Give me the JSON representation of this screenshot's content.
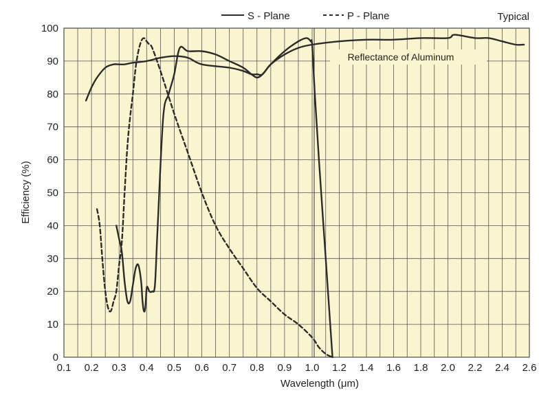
{
  "chart_data": {
    "type": "line",
    "title": "",
    "note": "Typical",
    "xlabel": "Wavelength (μm)",
    "ylabel": "Efficiency (%)",
    "ylim": [
      0,
      100
    ],
    "y_ticks": [
      0,
      10,
      20,
      30,
      40,
      50,
      60,
      70,
      80,
      90,
      100
    ],
    "x_ticks_left": [
      "0.1",
      "0.2",
      "0.3",
      "0.4",
      "0.5",
      "0.6",
      "0.7",
      "0.8",
      "0.9",
      "1.0"
    ],
    "x_ticks_right": [
      "1.2",
      "1.4",
      "1.6",
      "1.8",
      "2.0",
      "2.2",
      "2.4",
      "2.6"
    ],
    "x_scale_note": "axis is compressed to the right of 1.0 μm (each division = 0.2 μm)",
    "grid": true,
    "legend_position": "top",
    "annotation": "Reflectance of Aluminum",
    "colors": {
      "plot_background": "#fbf5cf",
      "grid": "#555555",
      "line": "#2b2b2b"
    },
    "series": [
      {
        "name": "S - Plane",
        "style": "solid",
        "x": [
          0.29,
          0.3,
          0.31,
          0.32,
          0.33,
          0.34,
          0.35,
          0.36,
          0.37,
          0.38,
          0.385,
          0.39,
          0.395,
          0.4,
          0.405,
          0.41,
          0.42,
          0.43,
          0.44,
          0.46,
          0.48,
          0.5,
          0.52,
          0.55,
          0.6,
          0.65,
          0.7,
          0.75,
          0.78,
          0.8,
          0.82,
          0.85,
          0.9,
          0.95,
          0.98,
          0.995,
          1.0,
          1.02,
          1.05,
          1.1,
          1.15
        ],
        "y": [
          40,
          36,
          32,
          23,
          17,
          17,
          22,
          27,
          28,
          23,
          17,
          14,
          15,
          21,
          21,
          20,
          20,
          22,
          40,
          73,
          80,
          86,
          94,
          93,
          93,
          92,
          90,
          88,
          86,
          85,
          86,
          89,
          93,
          96,
          97,
          96,
          95,
          80,
          60,
          30,
          0
        ]
      },
      {
        "name": "P - Plane",
        "style": "dashed",
        "x": [
          0.22,
          0.23,
          0.24,
          0.25,
          0.26,
          0.27,
          0.28,
          0.29,
          0.3,
          0.31,
          0.32,
          0.33,
          0.34,
          0.35,
          0.36,
          0.37,
          0.38,
          0.39,
          0.4,
          0.41,
          0.42,
          0.45,
          0.5,
          0.55,
          0.6,
          0.65,
          0.7,
          0.75,
          0.8,
          0.85,
          0.9,
          0.95,
          1.0,
          1.05,
          1.1,
          1.15
        ],
        "y": [
          45,
          40,
          29,
          20,
          15,
          14,
          17,
          20,
          28,
          35,
          50,
          64,
          73,
          80,
          88,
          93,
          96,
          97,
          96,
          95,
          94,
          87,
          74,
          62,
          50,
          40,
          33,
          27,
          21,
          17,
          13,
          10,
          6,
          3,
          1,
          0
        ]
      },
      {
        "name": "Reflectance of Aluminum",
        "style": "solid",
        "x": [
          0.18,
          0.2,
          0.22,
          0.25,
          0.28,
          0.3,
          0.32,
          0.35,
          0.4,
          0.45,
          0.5,
          0.55,
          0.6,
          0.7,
          0.75,
          0.78,
          0.8,
          0.82,
          0.85,
          0.9,
          0.95,
          1.0,
          1.2,
          1.4,
          1.6,
          1.8,
          2.0,
          2.05,
          2.2,
          2.3,
          2.4,
          2.5,
          2.56
        ],
        "y": [
          78,
          82,
          85,
          88,
          89,
          89,
          89,
          89.5,
          90,
          91,
          91.5,
          91,
          89,
          88,
          87,
          86,
          86,
          86,
          89,
          92,
          94,
          95,
          96,
          96.5,
          96.5,
          97,
          97,
          98,
          97,
          97,
          96,
          95,
          95
        ]
      }
    ]
  }
}
